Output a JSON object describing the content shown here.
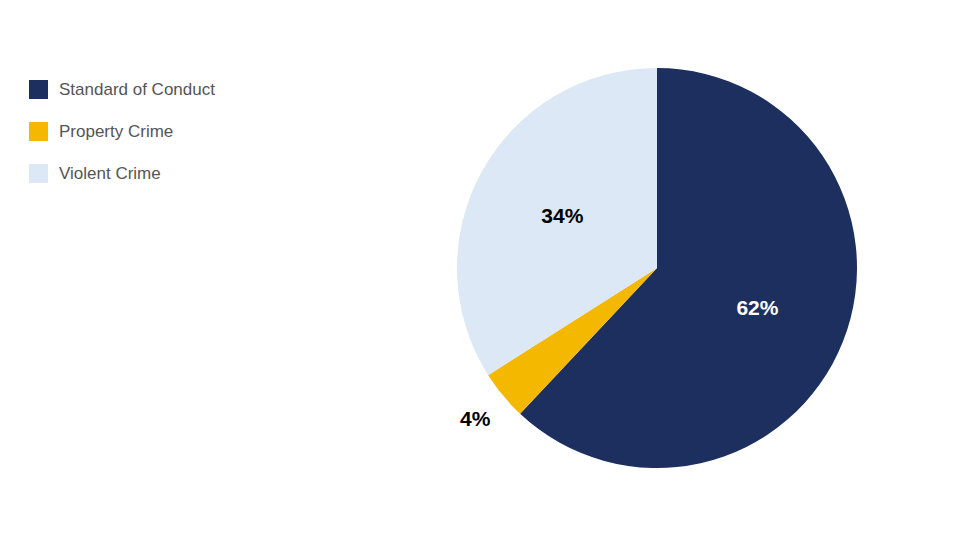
{
  "chart_data": {
    "type": "pie",
    "categories": [
      "Standard of Conduct",
      "Property Crime",
      "Violent Crime"
    ],
    "values": [
      62,
      4,
      34
    ],
    "value_labels": [
      "62%",
      "4%",
      "34%"
    ],
    "colors": [
      "#1c2f5e",
      "#f5b800",
      "#dce8f5"
    ],
    "data_labels": true,
    "legend": "upper left"
  }
}
